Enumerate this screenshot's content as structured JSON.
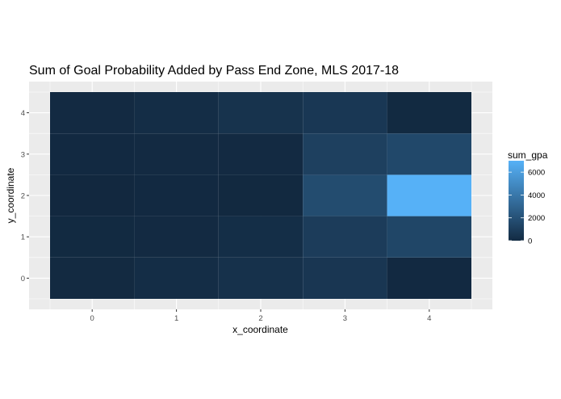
{
  "chart_data": {
    "type": "heatmap",
    "title": "Sum of Goal Probability Added by Pass End Zone, MLS 2017-18",
    "xlabel": "x_coordinate",
    "ylabel": "y_coordinate",
    "x": [
      0,
      1,
      2,
      3,
      4
    ],
    "y": [
      0,
      1,
      2,
      3,
      4
    ],
    "x_tick_labels": [
      "0",
      "1",
      "2",
      "3",
      "4"
    ],
    "y_tick_labels": [
      "0",
      "1",
      "2",
      "3",
      "4"
    ],
    "xlim": [
      -0.5,
      4.5
    ],
    "ylim": [
      -0.5,
      4.5
    ],
    "grid": true,
    "legend": {
      "title": "sum_gpa",
      "position": "right",
      "range": [
        0,
        7000
      ],
      "breaks": [
        0,
        2000,
        4000,
        6000
      ],
      "break_labels": [
        "0",
        "2000",
        "4000",
        "6000"
      ],
      "low_color": "#132B43",
      "high_color": "#56B1F7"
    },
    "values": [
      [
        -200,
        100,
        300,
        600,
        -300
      ],
      [
        -250,
        -100,
        150,
        900,
        1400
      ],
      [
        -500,
        -300,
        -350,
        1700,
        7000
      ],
      [
        -300,
        -150,
        -150,
        1100,
        1500
      ],
      [
        -100,
        100,
        400,
        650,
        -250
      ]
    ],
    "values_note_rows": "values[row] where row index = y_coordinate (0 at bottom), column index = x_coordinate"
  }
}
